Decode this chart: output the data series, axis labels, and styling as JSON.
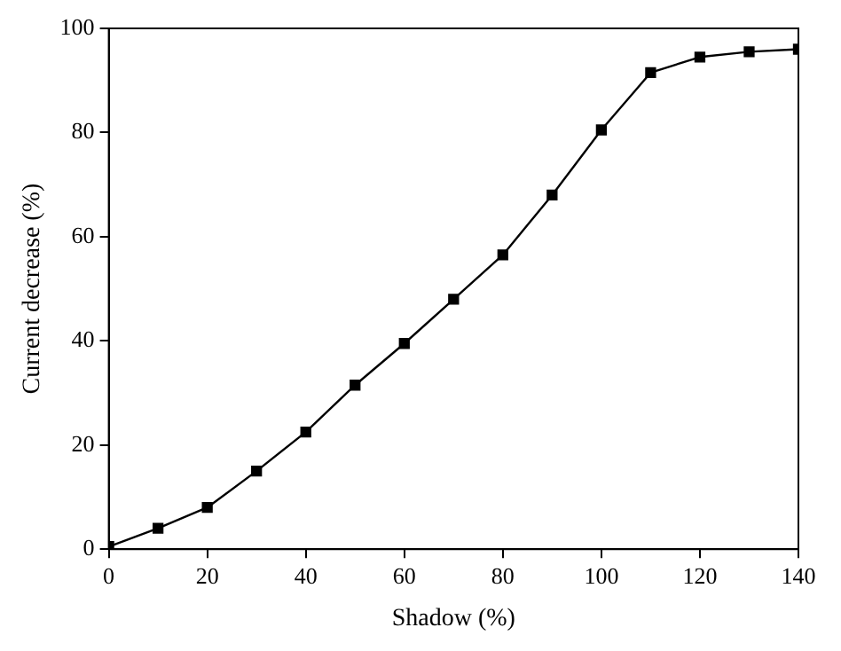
{
  "chart_data": {
    "type": "line",
    "xlabel": "Shadow (%)",
    "ylabel": "Current decrease (%)",
    "x": [
      0,
      10,
      20,
      30,
      40,
      50,
      60,
      70,
      80,
      90,
      100,
      110,
      120,
      130,
      140
    ],
    "series": [
      {
        "color": "#000000",
        "values": [
          0.5,
          4,
          8,
          15,
          22.5,
          31.5,
          39.5,
          48,
          56.5,
          68,
          80.5,
          91.5,
          94.5,
          95.5,
          96
        ]
      }
    ],
    "xlim": [
      0,
      140
    ],
    "xticks": [
      0,
      20,
      40,
      60,
      80,
      100,
      120,
      140
    ],
    "ylim": [
      0,
      100
    ],
    "yticks": [
      0,
      20,
      40,
      60,
      80,
      100
    ],
    "grid": false,
    "legend": false,
    "marker": "square",
    "line_style": "solid"
  }
}
